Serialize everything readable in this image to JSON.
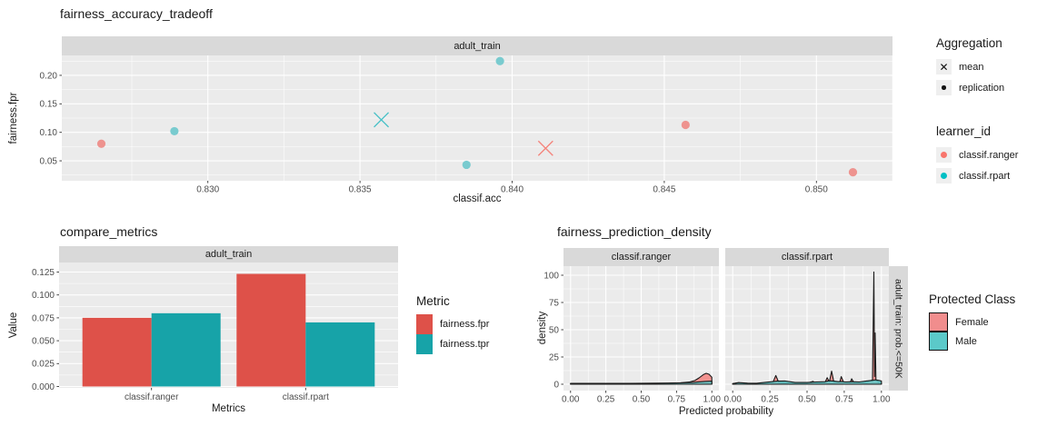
{
  "chart_data": [
    {
      "id": "fairness_accuracy_tradeoff",
      "type": "scatter",
      "title": "fairness_accuracy_tradeoff",
      "facet": "adult_train",
      "xlabel": "classif.acc",
      "ylabel": "fairness.fpr",
      "xlim": [
        0.8252,
        0.8525
      ],
      "ylim": [
        0.015,
        0.235
      ],
      "xticks": [
        {
          "v": 0.83,
          "label": "0.830"
        },
        {
          "v": 0.835,
          "label": "0.835"
        },
        {
          "v": 0.84,
          "label": "0.840"
        },
        {
          "v": 0.845,
          "label": "0.845"
        },
        {
          "v": 0.85,
          "label": "0.850"
        }
      ],
      "yticks": [
        {
          "v": 0.05,
          "label": "0.05"
        },
        {
          "v": 0.1,
          "label": "0.10"
        },
        {
          "v": 0.15,
          "label": "0.15"
        },
        {
          "v": 0.2,
          "label": "0.20"
        }
      ],
      "series": [
        {
          "name": "classif.ranger",
          "aggregation": "replication",
          "marker": "circle",
          "color": "#EE938F",
          "points": [
            [
              0.8265,
              0.08
            ],
            [
              0.8457,
              0.113
            ],
            [
              0.8512,
              0.03
            ]
          ]
        },
        {
          "name": "classif.rpart",
          "aggregation": "replication",
          "marker": "circle",
          "color": "#79CBCF",
          "points": [
            [
              0.8289,
              0.102
            ],
            [
              0.8385,
              0.043
            ],
            [
              0.8396,
              0.225
            ]
          ]
        },
        {
          "name": "classif.ranger",
          "aggregation": "mean",
          "marker": "x",
          "color": "#F4837B",
          "points": [
            [
              0.8411,
              0.072
            ]
          ]
        },
        {
          "name": "classif.rpart",
          "aggregation": "mean",
          "marker": "x",
          "color": "#49C1C7",
          "points": [
            [
              0.8357,
              0.122
            ]
          ]
        }
      ],
      "legends": [
        {
          "title": "Aggregation",
          "items": [
            {
              "label": "mean",
              "marker": "x"
            },
            {
              "label": "replication",
              "marker": "dot"
            }
          ]
        },
        {
          "title": "learner_id",
          "items": [
            {
              "label": "classif.ranger",
              "color": "#F8766D"
            },
            {
              "label": "classif.rpart",
              "color": "#00BFC4"
            }
          ]
        }
      ]
    },
    {
      "id": "compare_metrics",
      "type": "bar",
      "title": "compare_metrics",
      "facet": "adult_train",
      "xlabel": "Metrics",
      "ylabel": "Value",
      "categories": [
        "classif.ranger",
        "classif.rpart"
      ],
      "ylim": [
        0,
        0.1295
      ],
      "yticks": [
        {
          "v": 0.0,
          "label": "0.000"
        },
        {
          "v": 0.025,
          "label": "0.025"
        },
        {
          "v": 0.05,
          "label": "0.050"
        },
        {
          "v": 0.075,
          "label": "0.075"
        },
        {
          "v": 0.1,
          "label": "0.100"
        },
        {
          "v": 0.125,
          "label": "0.125"
        }
      ],
      "series": [
        {
          "name": "fairness.fpr",
          "color": "#DE5149",
          "values": [
            0.075,
            0.123
          ]
        },
        {
          "name": "fairness.tpr",
          "color": "#17A3A8",
          "values": [
            0.08,
            0.07
          ]
        }
      ],
      "legend": {
        "title": "Metric",
        "items": [
          {
            "label": "fairness.fpr",
            "color": "#DE5149"
          },
          {
            "label": "fairness.tpr",
            "color": "#17A3A8"
          }
        ]
      }
    },
    {
      "id": "fairness_prediction_density",
      "type": "area",
      "title": "fairness_prediction_density",
      "facets": [
        "classif.ranger",
        "classif.rpart"
      ],
      "right_strip": "adult_train: prob.<=50K",
      "xlabel": "Predicted probability",
      "ylabel": "density",
      "xlim": [
        0,
        1
      ],
      "ylim": [
        0,
        108
      ],
      "xticks": [
        {
          "v": 0.0,
          "label": "0.00"
        },
        {
          "v": 0.25,
          "label": "0.25"
        },
        {
          "v": 0.5,
          "label": "0.50"
        },
        {
          "v": 0.75,
          "label": "0.75"
        },
        {
          "v": 1.0,
          "label": "1.00"
        }
      ],
      "yticks": [
        {
          "v": 0,
          "label": "0"
        },
        {
          "v": 25,
          "label": "25"
        },
        {
          "v": 50,
          "label": "50"
        },
        {
          "v": 75,
          "label": "75"
        },
        {
          "v": 100,
          "label": "100"
        }
      ],
      "series": [
        {
          "facet": "classif.ranger",
          "name": "Female",
          "color": "#F2928F",
          "points": [
            [
              0,
              0.7
            ],
            [
              0.15,
              0.7
            ],
            [
              0.3,
              0.7
            ],
            [
              0.45,
              0.75
            ],
            [
              0.6,
              0.9
            ],
            [
              0.7,
              1.0
            ],
            [
              0.78,
              1.3
            ],
            [
              0.84,
              2.0
            ],
            [
              0.88,
              3.4
            ],
            [
              0.91,
              5.8
            ],
            [
              0.94,
              8.8
            ],
            [
              0.96,
              10.0
            ],
            [
              0.98,
              9.2
            ],
            [
              1,
              6.5
            ]
          ]
        },
        {
          "facet": "classif.ranger",
          "name": "Male",
          "color": "#5ECACA",
          "points": [
            [
              0,
              0.8
            ],
            [
              0.2,
              0.8
            ],
            [
              0.4,
              0.85
            ],
            [
              0.6,
              0.95
            ],
            [
              0.72,
              1.05
            ],
            [
              0.8,
              1.3
            ],
            [
              0.86,
              1.6
            ],
            [
              0.9,
              2.0
            ],
            [
              0.95,
              2.6
            ],
            [
              1,
              2.8
            ]
          ]
        },
        {
          "facet": "classif.rpart",
          "name": "Female",
          "color": "#F2928F",
          "points": [
            [
              0,
              0.5
            ],
            [
              0.04,
              1.3
            ],
            [
              0.06,
              0.8
            ],
            [
              0.12,
              0.6
            ],
            [
              0.2,
              0.8
            ],
            [
              0.27,
              1.6
            ],
            [
              0.29,
              8.0
            ],
            [
              0.31,
              1.6
            ],
            [
              0.4,
              0.8
            ],
            [
              0.5,
              1.0
            ],
            [
              0.54,
              2.6
            ],
            [
              0.56,
              1.0
            ],
            [
              0.62,
              1.4
            ],
            [
              0.635,
              6.0
            ],
            [
              0.65,
              2.0
            ],
            [
              0.665,
              12.0
            ],
            [
              0.68,
              2.0
            ],
            [
              0.72,
              2.0
            ],
            [
              0.73,
              7.0
            ],
            [
              0.745,
              2.0
            ],
            [
              0.79,
              1.5
            ],
            [
              0.8,
              5.0
            ],
            [
              0.815,
              1.5
            ],
            [
              0.9,
              1.6
            ],
            [
              0.94,
              4.0
            ],
            [
              0.949,
              103.0
            ],
            [
              0.954,
              7.0
            ],
            [
              0.958,
              47.0
            ],
            [
              0.963,
              4.0
            ],
            [
              0.98,
              1.6
            ],
            [
              1,
              1.2
            ]
          ]
        },
        {
          "facet": "classif.rpart",
          "name": "Male",
          "color": "#5ECACA",
          "points": [
            [
              0,
              0.6
            ],
            [
              0.04,
              1.5
            ],
            [
              0.1,
              1.0
            ],
            [
              0.16,
              0.9
            ],
            [
              0.24,
              2.0
            ],
            [
              0.3,
              2.8
            ],
            [
              0.35,
              3.0
            ],
            [
              0.42,
              1.6
            ],
            [
              0.5,
              1.6
            ],
            [
              0.56,
              2.1
            ],
            [
              0.62,
              2.3
            ],
            [
              0.65,
              3.2
            ],
            [
              0.68,
              2.8
            ],
            [
              0.71,
              2.3
            ],
            [
              0.73,
              2.6
            ],
            [
              0.76,
              2.1
            ],
            [
              0.8,
              2.3
            ],
            [
              0.85,
              2.1
            ],
            [
              0.9,
              3.0
            ],
            [
              0.94,
              3.6
            ],
            [
              0.96,
              4.0
            ],
            [
              0.98,
              3.6
            ],
            [
              1,
              3.0
            ]
          ]
        }
      ],
      "legend": {
        "title": "Protected Class",
        "items": [
          {
            "label": "Female",
            "color": "#F18D8D"
          },
          {
            "label": "Male",
            "color": "#5BC9C9"
          }
        ]
      }
    }
  ],
  "theme": {
    "panel_bg": "#EBEBEB",
    "strip_bg": "#D9D9D9",
    "grid_color": "#FFFFFF",
    "tick_text": "#4D4D4D",
    "outline": "#1a1a1a"
  }
}
